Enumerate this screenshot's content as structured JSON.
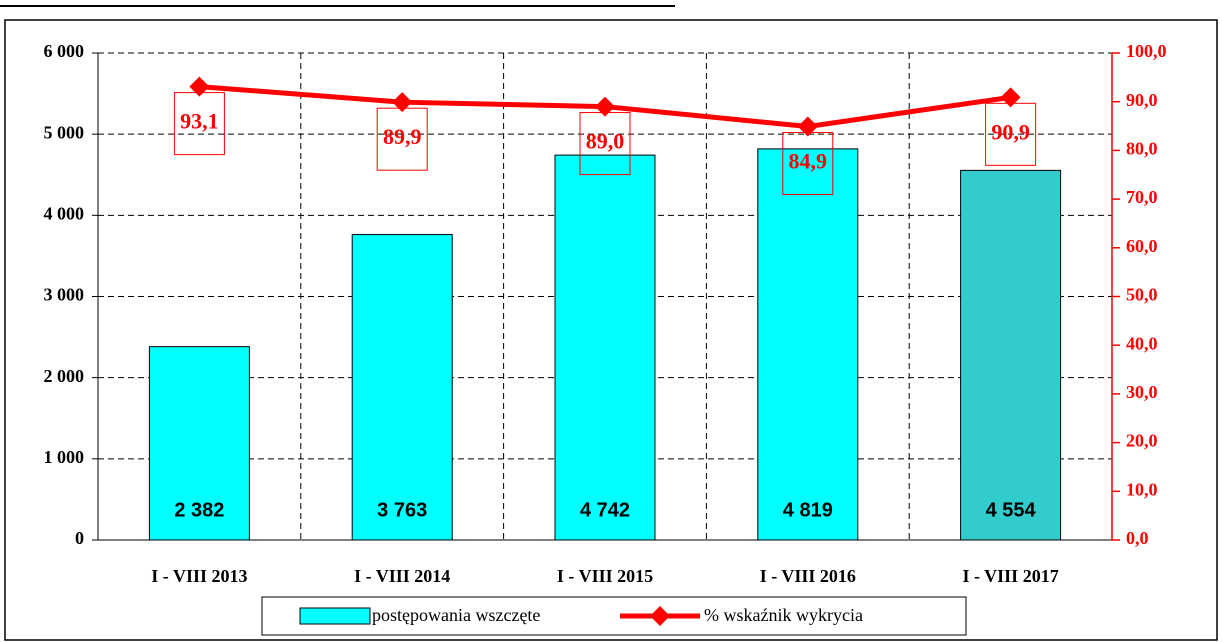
{
  "chart_data": {
    "type": "bar_line",
    "categories": [
      "I - VIII 2013",
      "I - VIII 2014",
      "I - VIII 2015",
      "I - VIII 2016",
      "I - VIII 2017"
    ],
    "series": [
      {
        "name": "postępowania wszczęte",
        "type": "bar",
        "color": "#00ffff",
        "bar_colors": [
          "#00ffff",
          "#00ffff",
          "#00ffff",
          "#00ffff",
          "#33cccc"
        ],
        "values": [
          2382,
          3763,
          4742,
          4819,
          4554
        ],
        "value_labels": [
          "2 382",
          "3 763",
          "4 742",
          "4 819",
          "4 554"
        ]
      },
      {
        "name": "% wskaźnik wykrycia",
        "type": "line",
        "axis": "y2",
        "color": "#ff0000",
        "values": [
          93.1,
          89.9,
          89.0,
          84.9,
          90.9
        ],
        "value_labels": [
          "93,1",
          "89,9",
          "89,0",
          "84,9",
          "90,9"
        ]
      }
    ],
    "ylim": [
      0,
      6000
    ],
    "yticks": [
      0,
      {
        "value": 1000,
        "label": "1 000"
      },
      {
        "value": 2000,
        "label": "2 000"
      },
      {
        "value": 3000,
        "label": "3 000"
      },
      {
        "value": 4000,
        "label": "4 000"
      },
      {
        "value": 5000,
        "label": "5 000"
      },
      {
        "value": 6000,
        "label": "6 000"
      }
    ],
    "y2lim": [
      0,
      100
    ],
    "y2ticks": [
      {
        "value": 0,
        "label": "0,0"
      },
      {
        "value": 10,
        "label": "10,0"
      },
      {
        "value": 20,
        "label": "20,0"
      },
      {
        "value": 30,
        "label": "30,0"
      },
      {
        "value": 40,
        "label": "40,0"
      },
      {
        "value": 50,
        "label": "50,0"
      },
      {
        "value": 60,
        "label": "60,0"
      },
      {
        "value": 70,
        "label": "70,0"
      },
      {
        "value": 80,
        "label": "80,0"
      },
      {
        "value": 90,
        "label": "90,0"
      },
      {
        "value": 100,
        "label": "100,0"
      }
    ],
    "grid": true,
    "legend": "bottom"
  }
}
